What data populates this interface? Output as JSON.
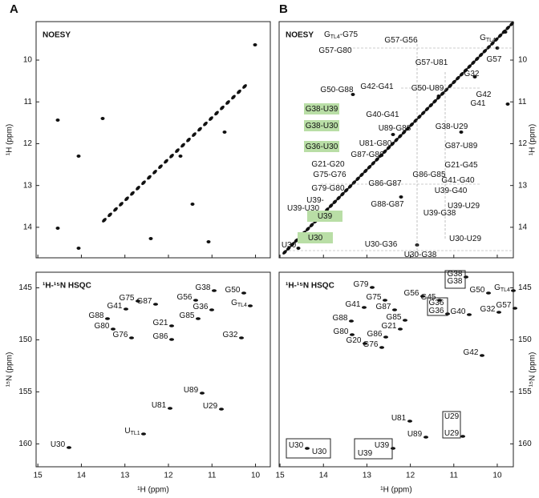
{
  "axes": {
    "x_label": "¹H (ppm)",
    "xticks": [
      15,
      14,
      13,
      12,
      11,
      10
    ],
    "xlim_A": [
      15.04,
      9.66
    ],
    "xlim_B": [
      15.02,
      9.63
    ],
    "noesy_ylabel": "¹H (ppm)",
    "noesy_yticks": [
      10,
      11,
      12,
      13,
      14
    ],
    "noesy_ylim": [
      9.08,
      14.73
    ],
    "hsqc_ylabel": "¹⁵N (ppm)",
    "hsqc_yticks": [
      145,
      150,
      155,
      160
    ],
    "hsqc_ylim": [
      143.5,
      162.2
    ],
    "green_color": "#2e9b3c",
    "highlight_color": "#b9dea6"
  },
  "panels": [
    {
      "letter": "A",
      "noesy": {
        "title": "NOESY",
        "labels": []
      },
      "hsqc": {
        "title": "¹H-¹⁵N HSQC",
        "labels": [
          {
            "text": "G38"
          },
          {
            "text": "G50"
          },
          {
            "text": "G",
            "sub": "TL4"
          },
          {
            "text": "G75"
          },
          {
            "text": "G56"
          },
          {
            "text": "G36"
          },
          {
            "text": "G87"
          },
          {
            "text": "G41"
          },
          {
            "text": "G85"
          },
          {
            "text": "G88"
          },
          {
            "text": "G21"
          },
          {
            "text": "G80"
          },
          {
            "text": "G76"
          },
          {
            "text": "G86"
          },
          {
            "text": "G32"
          },
          {
            "text": "U89"
          },
          {
            "text": "U81"
          },
          {
            "text": "U29"
          },
          {
            "text": "U",
            "sub": "TL1"
          },
          {
            "text": "U30"
          }
        ]
      }
    },
    {
      "letter": "B",
      "noesy": {
        "title": "NOESY",
        "labels": [
          {
            "text": "G",
            "sub": "TL4",
            "suffix": "-G75"
          },
          {
            "text": "G57-G56"
          },
          {
            "text": "G",
            "sub": "TL4"
          },
          {
            "text": "G57-G80"
          },
          {
            "text": "G57"
          },
          {
            "text": "G57-U81"
          },
          {
            "text": "G32"
          },
          {
            "text": "G50-G88"
          },
          {
            "text": "G42-G41"
          },
          {
            "text": "G50-U89"
          },
          {
            "text": "G42"
          },
          {
            "text": "G41"
          },
          {
            "text": "G38-U39",
            "highlight": true
          },
          {
            "text": "G40-G41"
          },
          {
            "text": "G38-U30",
            "highlight": true
          },
          {
            "text": "U89-G88"
          },
          {
            "text": "G38-U29"
          },
          {
            "text": "U81-G80"
          },
          {
            "text": "G36-U30",
            "highlight": true
          },
          {
            "text": "G87-U89"
          },
          {
            "text": "G87-G86"
          },
          {
            "text": "G21-G20"
          },
          {
            "text": "G21-G45"
          },
          {
            "text": "G75-G76"
          },
          {
            "text": "G86-G85"
          },
          {
            "text": "G86-G87"
          },
          {
            "text": "G41-G40"
          },
          {
            "text": "G79-G80"
          },
          {
            "text": "U39-G40"
          },
          {
            "text": "U39-"
          },
          {
            "text": "G88-G87"
          },
          {
            "text": "U39-U29"
          },
          {
            "text": "U39-U30"
          },
          {
            "text": "U39",
            "highlight": true
          },
          {
            "text": "U39-G38"
          },
          {
            "text": "U30",
            "highlight": true
          },
          {
            "text": "U30-G36"
          },
          {
            "text": "U30-U29"
          },
          {
            "text": "U30"
          },
          {
            "text": "U30-G38"
          }
        ]
      },
      "hsqc": {
        "title": "¹H-¹⁵N HSQC",
        "labels": [
          {
            "text": "G38",
            "green": true
          },
          {
            "text": "G38"
          },
          {
            "text": "G50"
          },
          {
            "text": "G",
            "sub": "TL4"
          },
          {
            "text": "G79"
          },
          {
            "text": "G56"
          },
          {
            "text": "G45"
          },
          {
            "text": "G75"
          },
          {
            "text": "G36",
            "green": true
          },
          {
            "text": "G36"
          },
          {
            "text": "G40"
          },
          {
            "text": "G41"
          },
          {
            "text": "G87"
          },
          {
            "text": "G32"
          },
          {
            "text": "G57"
          },
          {
            "text": "G88"
          },
          {
            "text": "G85"
          },
          {
            "text": "G21"
          },
          {
            "text": "G80"
          },
          {
            "text": "G86"
          },
          {
            "text": "G20"
          },
          {
            "text": "G76"
          },
          {
            "text": "G42"
          },
          {
            "text": "U29",
            "green": true
          },
          {
            "text": "U81"
          },
          {
            "text": "U29"
          },
          {
            "text": "U89"
          },
          {
            "text": "U30"
          },
          {
            "text": "U39"
          },
          {
            "text": "U30",
            "green": true
          },
          {
            "text": "U39",
            "green": true
          }
        ]
      }
    }
  ]
}
